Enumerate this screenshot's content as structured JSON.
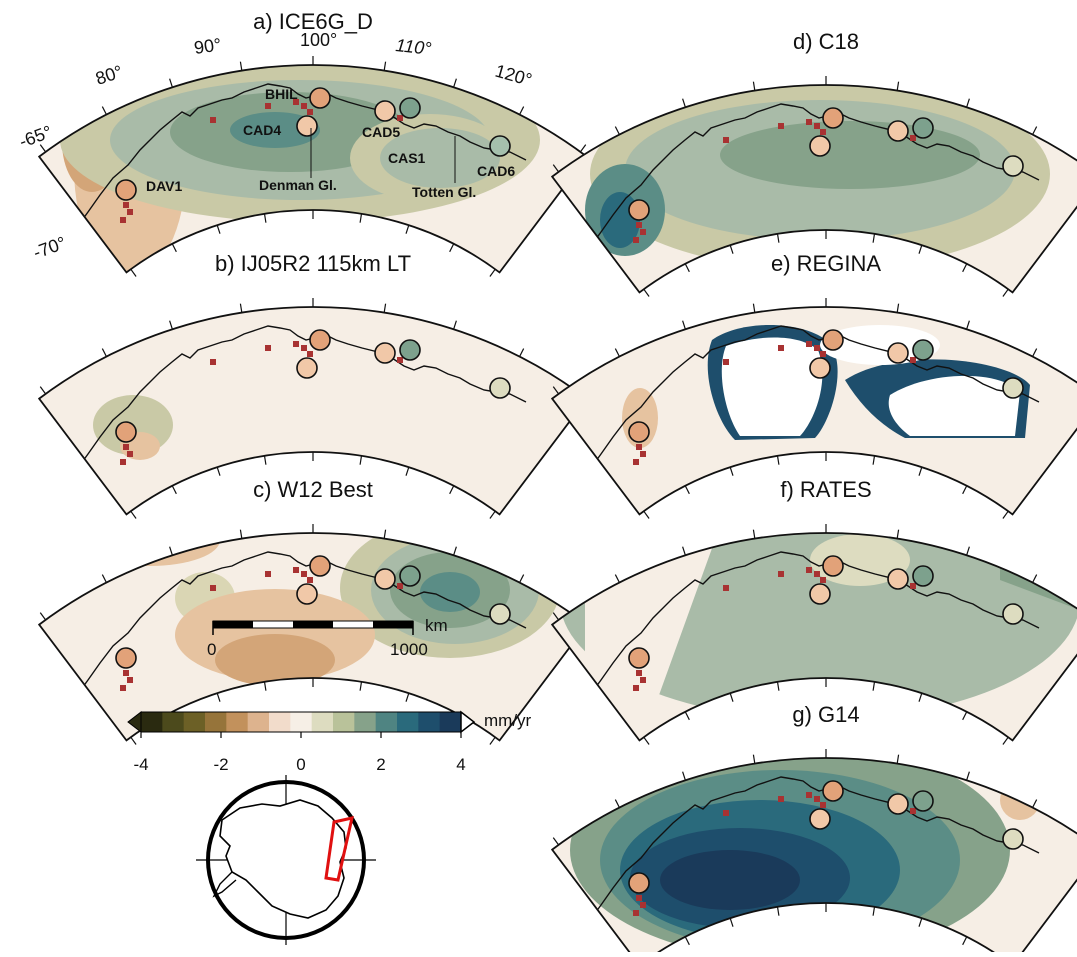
{
  "panels": [
    {
      "id": "a",
      "title": "a) ICE6G_D"
    },
    {
      "id": "b",
      "title": "b) IJ05R2 115km LT"
    },
    {
      "id": "c",
      "title": "c) W12 Best"
    },
    {
      "id": "d",
      "title": "d) C18"
    },
    {
      "id": "e",
      "title": "e) REGINA"
    },
    {
      "id": "f",
      "title": "f) RATES"
    },
    {
      "id": "g",
      "title": "g) G14"
    }
  ],
  "longitude_labels": [
    "80°",
    "90°",
    "100°",
    "110°",
    "120°"
  ],
  "latitude_labels": [
    "-65°",
    "-70°"
  ],
  "gps_sites": [
    "BHIL",
    "CAD4",
    "CAD5",
    "CAS1",
    "CAD6",
    "DAV1"
  ],
  "glaciers": [
    "Denman Gl.",
    "Totten Gl."
  ],
  "scale_bar": {
    "start": "0",
    "end": "1000",
    "unit": "km"
  },
  "colorbar": {
    "unit": "mm/yr",
    "tick_labels": [
      "-4",
      "-2",
      "0",
      "2",
      "4"
    ],
    "range": [
      -4,
      4
    ],
    "colors": [
      "#2a2a10",
      "#4c4a1c",
      "#6c6026",
      "#96743a",
      "#c2915c",
      "#ddb38e",
      "#f2dccb",
      "#f6efe6",
      "#dddcc0",
      "#b9c29a",
      "#86a28a",
      "#4f8482",
      "#2a6a7c",
      "#1e4e6c",
      "#1a3a5a",
      "#ffffff"
    ]
  },
  "colors": {
    "positive_strong": "#1f4e6e",
    "negative": "#d3a578",
    "coastline": "#111111",
    "ice_rise_marks": "#a83232",
    "inset_box": "#e01010"
  }
}
